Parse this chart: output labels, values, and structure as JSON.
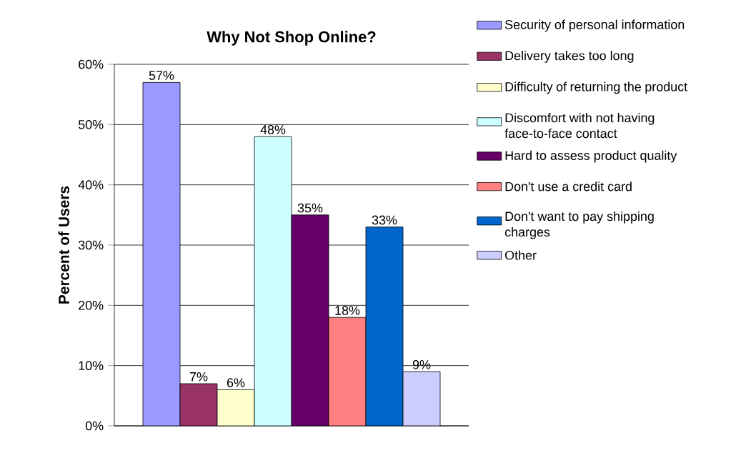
{
  "chart_data": {
    "type": "bar",
    "title": "Why Not Shop Online?",
    "ylabel": "Percent of Users",
    "categories": [
      null
    ],
    "series": [
      {
        "name": "Security of personal information",
        "color": "#9999ff",
        "values": [
          57
        ],
        "value_labels": [
          "57%"
        ]
      },
      {
        "name": "Delivery takes too long",
        "color": "#993366",
        "values": [
          7
        ],
        "value_labels": [
          "7%"
        ]
      },
      {
        "name": "Difficulty of returning the product",
        "color": "#ffffcc",
        "values": [
          6
        ],
        "value_labels": [
          "6%"
        ]
      },
      {
        "name": "Discomfort with not having face-to-face contact",
        "color": "#ccffff",
        "values": [
          48
        ],
        "value_labels": [
          "48%"
        ]
      },
      {
        "name": "Hard to assess product quality",
        "color": "#660066",
        "values": [
          35
        ],
        "value_labels": [
          "35%"
        ]
      },
      {
        "name": "Don't use a credit card",
        "color": "#ff8080",
        "values": [
          18
        ],
        "value_labels": [
          "18%"
        ]
      },
      {
        "name": "Don't want to pay shipping charges",
        "color": "#0066cc",
        "values": [
          33
        ],
        "value_labels": [
          "33%"
        ]
      },
      {
        "name": "Other",
        "color": "#ccccff",
        "values": [
          9
        ],
        "value_labels": [
          "9%"
        ]
      }
    ],
    "ylim": [
      0,
      60
    ],
    "yticks": [
      {
        "value": 0,
        "label": "0%"
      },
      {
        "value": 10,
        "label": "10%"
      },
      {
        "value": 20,
        "label": "20%"
      },
      {
        "value": 30,
        "label": "30%"
      },
      {
        "value": 40,
        "label": "40%"
      },
      {
        "value": 50,
        "label": "50%"
      },
      {
        "value": 60,
        "label": "60%"
      }
    ],
    "grid": "y",
    "legend": "right"
  }
}
